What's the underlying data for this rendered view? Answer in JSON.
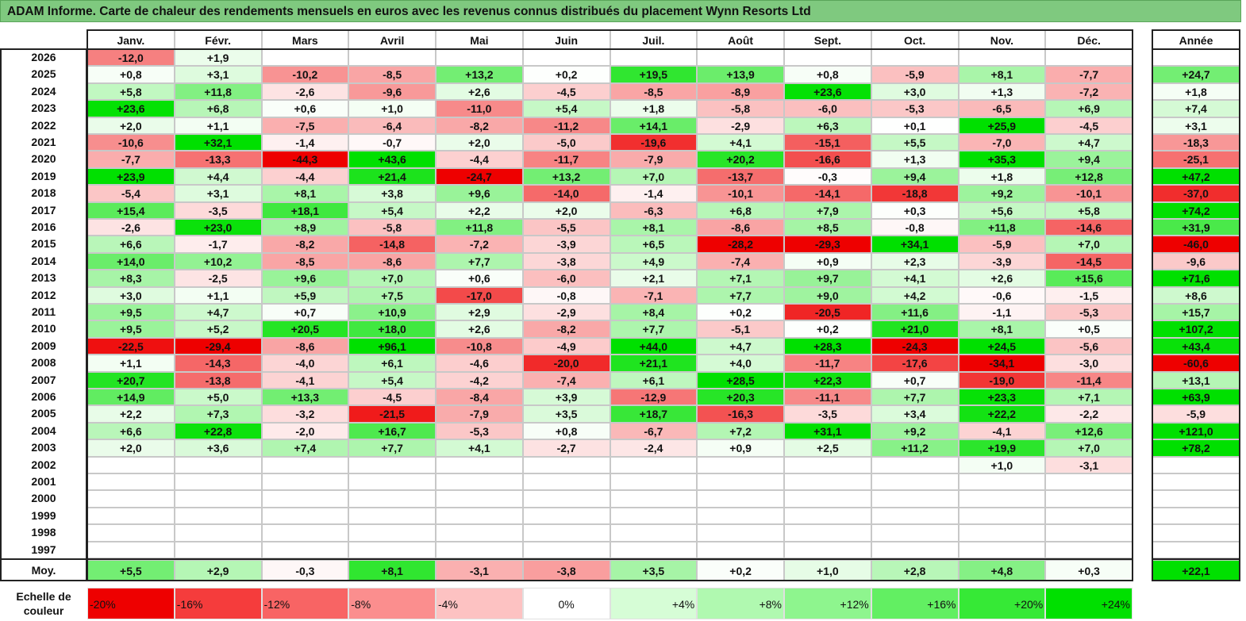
{
  "title": "ADAM Informe. Carte de chaleur des rendements mensuels en euros avec les revenus connus distribués du placement Wynn Resorts Ltd",
  "chart_data": {
    "type": "heatmap",
    "title": "ADAM Informe. Carte de chaleur des rendements mensuels en euros avec les revenus connus distribués du placement Wynn Resorts Ltd",
    "months": [
      "Janv.",
      "Févr.",
      "Mars",
      "Avril",
      "Mai",
      "Juin",
      "Juil.",
      "Août",
      "Sept.",
      "Oct.",
      "Nov.",
      "Déc."
    ],
    "year_column_label": "Année",
    "rows": [
      {
        "year": "2026",
        "values": [
          "-12,0",
          "+1,9",
          "",
          "",
          "",
          "",
          "",
          "",
          "",
          "",
          "",
          ""
        ],
        "annual": ""
      },
      {
        "year": "2025",
        "values": [
          "+0,8",
          "+3,1",
          "-10,2",
          "-8,5",
          "+13,2",
          "+0,2",
          "+19,5",
          "+13,9",
          "+0,8",
          "-5,9",
          "+8,1",
          "-7,7"
        ],
        "annual": "+24,7"
      },
      {
        "year": "2024",
        "values": [
          "+5,8",
          "+11,8",
          "-2,6",
          "-9,6",
          "+2,6",
          "-4,5",
          "-8,5",
          "-8,9",
          "+23,6",
          "+3,0",
          "+1,3",
          "-7,2"
        ],
        "annual": "+1,8"
      },
      {
        "year": "2023",
        "values": [
          "+23,6",
          "+6,8",
          "+0,6",
          "+1,0",
          "-11,0",
          "+5,4",
          "+1,8",
          "-5,8",
          "-6,0",
          "-5,3",
          "-6,5",
          "+6,9"
        ],
        "annual": "+7,4"
      },
      {
        "year": "2022",
        "values": [
          "+2,0",
          "+1,1",
          "-7,5",
          "-6,4",
          "-8,2",
          "-11,2",
          "+14,1",
          "-2,9",
          "+6,3",
          "+0,1",
          "+25,9",
          "-4,5"
        ],
        "annual": "+3,1"
      },
      {
        "year": "2021",
        "values": [
          "-10,6",
          "+32,1",
          "-1,4",
          "-0,7",
          "+2,0",
          "-5,0",
          "-19,6",
          "+4,1",
          "-15,1",
          "+5,5",
          "-7,0",
          "+4,7"
        ],
        "annual": "-18,3"
      },
      {
        "year": "2020",
        "values": [
          "-7,7",
          "-13,3",
          "-44,3",
          "+43,6",
          "-4,4",
          "-11,7",
          "-7,9",
          "+20,2",
          "-16,6",
          "+1,3",
          "+35,3",
          "+9,4"
        ],
        "annual": "-25,1"
      },
      {
        "year": "2019",
        "values": [
          "+23,9",
          "+4,4",
          "-4,4",
          "+21,4",
          "-24,7",
          "+13,2",
          "+7,0",
          "-13,7",
          "-0,3",
          "+9,4",
          "+1,8",
          "+12,8"
        ],
        "annual": "+47,2"
      },
      {
        "year": "2018",
        "values": [
          "-5,4",
          "+3,1",
          "+8,1",
          "+3,8",
          "+9,6",
          "-14,0",
          "-1,4",
          "-10,1",
          "-14,1",
          "-18,8",
          "+9,2",
          "-10,1"
        ],
        "annual": "-37,0"
      },
      {
        "year": "2017",
        "values": [
          "+15,4",
          "-3,5",
          "+18,1",
          "+5,4",
          "+2,2",
          "+2,0",
          "-6,3",
          "+6,8",
          "+7,9",
          "+0,3",
          "+5,6",
          "+5,8"
        ],
        "annual": "+74,2"
      },
      {
        "year": "2016",
        "values": [
          "-2,6",
          "+23,0",
          "+8,9",
          "-5,8",
          "+11,8",
          "-5,5",
          "+8,1",
          "-8,6",
          "+8,5",
          "-0,8",
          "+11,8",
          "-14,6"
        ],
        "annual": "+31,9"
      },
      {
        "year": "2015",
        "values": [
          "+6,6",
          "-1,7",
          "-8,2",
          "-14,8",
          "-7,2",
          "-3,9",
          "+6,5",
          "-28,2",
          "-29,3",
          "+34,1",
          "-5,9",
          "+7,0"
        ],
        "annual": "-46,0"
      },
      {
        "year": "2014",
        "values": [
          "+14,0",
          "+10,2",
          "-8,5",
          "-8,6",
          "+7,7",
          "-3,8",
          "+4,9",
          "-7,4",
          "+0,9",
          "+2,3",
          "-3,9",
          "-14,5"
        ],
        "annual": "-9,6"
      },
      {
        "year": "2013",
        "values": [
          "+8,3",
          "-2,5",
          "+9,6",
          "+7,0",
          "+0,6",
          "-6,0",
          "+2,1",
          "+7,1",
          "+9,7",
          "+4,1",
          "+2,6",
          "+15,6"
        ],
        "annual": "+71,6"
      },
      {
        "year": "2012",
        "values": [
          "+3,0",
          "+1,1",
          "+5,9",
          "+7,5",
          "-17,0",
          "-0,8",
          "-7,1",
          "+7,7",
          "+9,0",
          "+4,2",
          "-0,6",
          "-1,5"
        ],
        "annual": "+8,6"
      },
      {
        "year": "2011",
        "values": [
          "+9,5",
          "+4,7",
          "+0,7",
          "+10,9",
          "+2,9",
          "-2,9",
          "+8,4",
          "+0,2",
          "-20,5",
          "+11,6",
          "-1,1",
          "-5,3"
        ],
        "annual": "+15,7"
      },
      {
        "year": "2010",
        "values": [
          "+9,5",
          "+5,2",
          "+20,5",
          "+18,0",
          "+2,6",
          "-8,2",
          "+7,7",
          "-5,1",
          "+0,2",
          "+21,0",
          "+8,1",
          "+0,5"
        ],
        "annual": "+107,2"
      },
      {
        "year": "2009",
        "values": [
          "-22,5",
          "-29,4",
          "-8,6",
          "+96,1",
          "-10,8",
          "-4,9",
          "+44,0",
          "+4,7",
          "+28,3",
          "-24,3",
          "+24,5",
          "-5,6"
        ],
        "annual": "+43,4"
      },
      {
        "year": "2008",
        "values": [
          "+1,1",
          "-14,3",
          "-4,0",
          "+6,1",
          "-4,6",
          "-20,0",
          "+21,1",
          "+4,0",
          "-11,7",
          "-17,6",
          "-34,1",
          "-3,0"
        ],
        "annual": "-60,6"
      },
      {
        "year": "2007",
        "values": [
          "+20,7",
          "-13,8",
          "-4,1",
          "+5,4",
          "-4,2",
          "-7,4",
          "+6,1",
          "+28,5",
          "+22,3",
          "+0,7",
          "-19,0",
          "-11,4"
        ],
        "annual": "+13,1"
      },
      {
        "year": "2006",
        "values": [
          "+14,9",
          "+5,0",
          "+13,3",
          "-4,5",
          "-8,4",
          "+3,9",
          "-12,9",
          "+20,3",
          "-11,1",
          "+7,7",
          "+23,3",
          "+7,1"
        ],
        "annual": "+63,9"
      },
      {
        "year": "2005",
        "values": [
          "+2,2",
          "+7,3",
          "-3,2",
          "-21,5",
          "-7,9",
          "+3,5",
          "+18,7",
          "-16,3",
          "-3,5",
          "+3,4",
          "+22,2",
          "-2,2"
        ],
        "annual": "-5,9"
      },
      {
        "year": "2004",
        "values": [
          "+6,6",
          "+22,8",
          "-2,0",
          "+16,7",
          "-5,3",
          "+0,8",
          "-6,7",
          "+7,2",
          "+31,1",
          "+9,2",
          "-4,1",
          "+12,6"
        ],
        "annual": "+121,0"
      },
      {
        "year": "2003",
        "values": [
          "+2,0",
          "+3,6",
          "+7,4",
          "+7,7",
          "+4,1",
          "-2,7",
          "-2,4",
          "+0,9",
          "+2,5",
          "+11,2",
          "+19,9",
          "+7,0"
        ],
        "annual": "+78,2"
      },
      {
        "year": "2002",
        "values": [
          "",
          "",
          "",
          "",
          "",
          "",
          "",
          "",
          "",
          "",
          "+1,0",
          "-3,1"
        ],
        "annual": ""
      },
      {
        "year": "2001",
        "values": [
          "",
          "",
          "",
          "",
          "",
          "",
          "",
          "",
          "",
          "",
          "",
          ""
        ],
        "annual": ""
      },
      {
        "year": "2000",
        "values": [
          "",
          "",
          "",
          "",
          "",
          "",
          "",
          "",
          "",
          "",
          "",
          ""
        ],
        "annual": ""
      },
      {
        "year": "1999",
        "values": [
          "",
          "",
          "",
          "",
          "",
          "",
          "",
          "",
          "",
          "",
          "",
          ""
        ],
        "annual": ""
      },
      {
        "year": "1998",
        "values": [
          "",
          "",
          "",
          "",
          "",
          "",
          "",
          "",
          "",
          "",
          "",
          ""
        ],
        "annual": ""
      },
      {
        "year": "1997",
        "values": [
          "",
          "",
          "",
          "",
          "",
          "",
          "",
          "",
          "",
          "",
          "",
          ""
        ],
        "annual": ""
      }
    ],
    "average": {
      "label": "Moy.",
      "values": [
        "+5,5",
        "+2,9",
        "-0,3",
        "+8,1",
        "-3,1",
        "-3,8",
        "+3,5",
        "+0,2",
        "+1,0",
        "+2,8",
        "+4,8",
        "+0,3"
      ],
      "annual": "+22,1"
    },
    "color_scale": {
      "label": "Echelle de couleur",
      "steps": [
        "-20%",
        "-16%",
        "-12%",
        "-8%",
        "-4%",
        "0%",
        "+4%",
        "+8%",
        "+12%",
        "+16%",
        "+20%",
        "+24%"
      ],
      "colors": [
        "#ee0000",
        "#f53c3c",
        "#f86464",
        "#fb8e8e",
        "#fdc2c2",
        "#ffffff",
        "#d6fdd6",
        "#b0f9b0",
        "#8ef58e",
        "#62ef62",
        "#36e936",
        "#00e000"
      ]
    }
  }
}
